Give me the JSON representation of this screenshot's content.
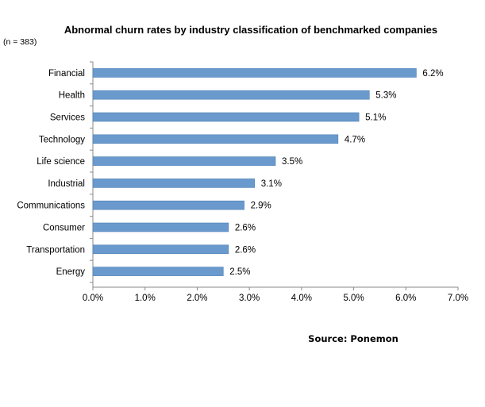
{
  "chart_data": {
    "type": "bar",
    "orientation": "horizontal",
    "title": "Abnormal churn rates by industry classification of benchmarked companies",
    "subtitle": "(n = 383)",
    "source": "Source: Ponemon",
    "categories": [
      "Financial",
      "Health",
      "Services",
      "Technology",
      "Life science",
      "Industrial",
      "Communications",
      "Consumer",
      "Transportation",
      "Energy"
    ],
    "values": [
      6.2,
      5.3,
      5.1,
      4.7,
      3.5,
      3.1,
      2.9,
      2.6,
      2.6,
      2.5
    ],
    "value_labels": [
      "6.2%",
      "5.3%",
      "5.1%",
      "4.7%",
      "3.5%",
      "3.1%",
      "2.9%",
      "2.6%",
      "2.6%",
      "2.5%"
    ],
    "xlim": [
      0,
      7
    ],
    "x_ticks": [
      0,
      1,
      2,
      3,
      4,
      5,
      6,
      7
    ],
    "x_tick_labels": [
      "0.0%",
      "1.0%",
      "2.0%",
      "3.0%",
      "4.0%",
      "5.0%",
      "6.0%",
      "7.0%"
    ],
    "xlabel": "",
    "ylabel": "",
    "grid": false,
    "colors": {
      "bar": "#6A9ACD",
      "bar_stroke": "#4F7FB3",
      "axis": "#888888"
    }
  }
}
